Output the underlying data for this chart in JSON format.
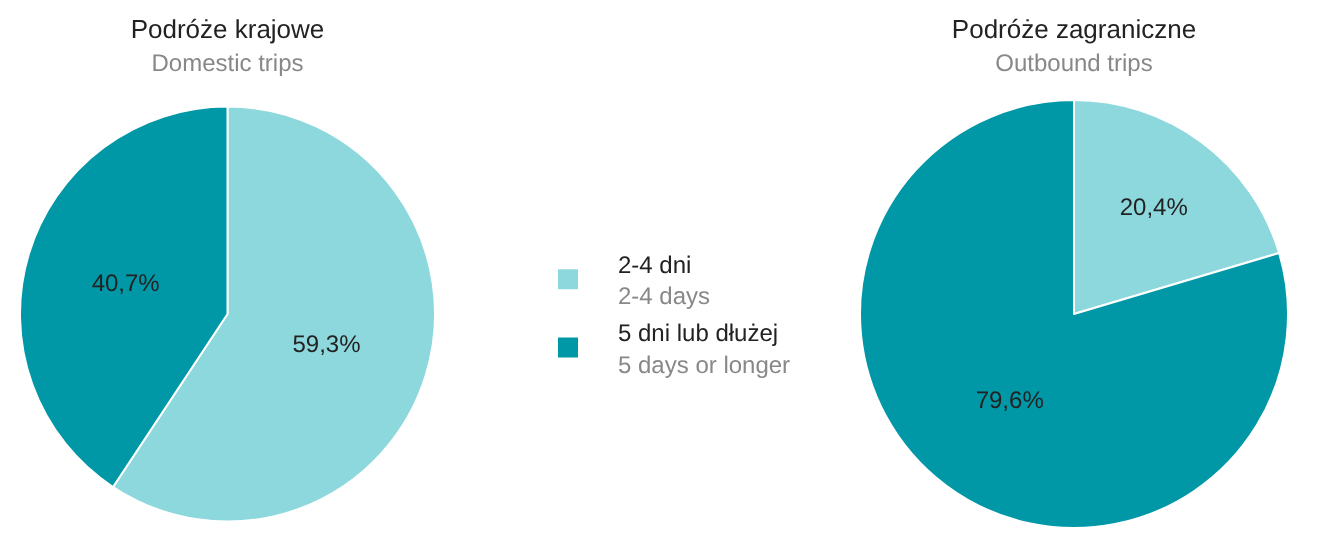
{
  "chart_data": [
    {
      "type": "pie",
      "title": "Podróże krajowe",
      "subtitle": "Domestic trips",
      "categories": [
        "2-4 dni\n2-4 days",
        "5 dni lub dłużej\n5 days or longer"
      ],
      "values": [
        59.3,
        40.7
      ],
      "colors": [
        "#8dd8dc",
        "#0097a7"
      ],
      "value_labels": [
        "59,3%",
        "40,7%"
      ],
      "legend": "right"
    },
    {
      "type": "pie",
      "title": "Podróże zagraniczne",
      "subtitle": "Outbound trips",
      "values": [
        20.4,
        79.6
      ],
      "colors": [
        "#8dd8dc",
        "#0097a7"
      ],
      "value_labels": [
        "20,4%",
        "79,6%"
      ],
      "legend": false
    }
  ]
}
